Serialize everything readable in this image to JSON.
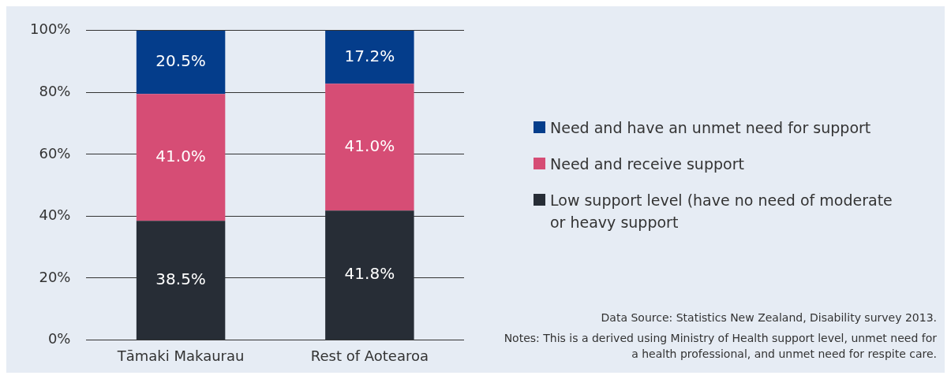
{
  "chart_data": {
    "type": "bar",
    "stacked": true,
    "categories": [
      "Tāmaki Makaurau",
      "Rest of Aotearoa"
    ],
    "series": [
      {
        "name": "Low support level (have no need of moderate or heavy support",
        "color": "#272d36",
        "values": [
          38.5,
          41.8
        ],
        "value_labels": [
          "38.5%",
          "41.8%"
        ]
      },
      {
        "name": "Need and receive support",
        "color": "#d64d75",
        "values": [
          41.0,
          41.0
        ],
        "value_labels": [
          "41.0%",
          "41.0%"
        ]
      },
      {
        "name": "Need and have an unmet need for support",
        "color": "#043d8b",
        "values": [
          20.5,
          17.2
        ],
        "value_labels": [
          "20.5%",
          "17.2%"
        ]
      }
    ],
    "ylim": [
      0,
      100
    ],
    "yticks": [
      {
        "value": 0,
        "label": "0%"
      },
      {
        "value": 20,
        "label": "20%"
      },
      {
        "value": 40,
        "label": "40%"
      },
      {
        "value": 60,
        "label": "60%"
      },
      {
        "value": 80,
        "label": "80%"
      },
      {
        "value": 100,
        "label": "100%"
      }
    ],
    "grid": "y",
    "legend": "right",
    "annotations": [
      "Data Source: Statistics New Zealand, Disability survey 2013.",
      "Notes: This is a derived using Ministry of Health support level, unmet need for a health professional, and unmet need for respite care."
    ]
  }
}
